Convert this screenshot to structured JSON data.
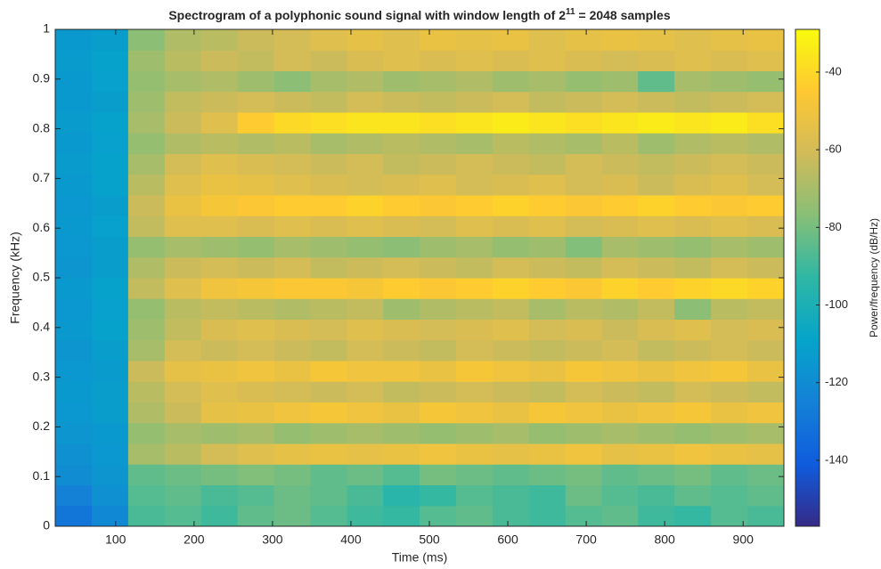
{
  "chart_data": {
    "type": "heatmap",
    "title": [
      "Spectrogram of a polyphonic sound signal with window length of 2",
      "11",
      " = 2048 samples"
    ],
    "xlabel": "Time (ms)",
    "ylabel": "Frequency (kHz)",
    "colorbar_label": "Power/frequency (dB/Hz)",
    "colormap": "parula",
    "x": [
      46,
      93,
      139,
      186,
      232,
      279,
      325,
      372,
      418,
      464,
      511,
      557,
      604,
      650,
      697,
      743,
      789,
      836,
      882,
      929
    ],
    "y": [
      0.0208,
      0.0625,
      0.1042,
      0.1458,
      0.1875,
      0.2292,
      0.2708,
      0.3125,
      0.3542,
      0.3958,
      0.4375,
      0.4792,
      0.5208,
      0.5625,
      0.6042,
      0.6458,
      0.6875,
      0.7292,
      0.7708,
      0.8125,
      0.8542,
      0.8958,
      0.9375,
      0.9792
    ],
    "z": [
      [
        -130,
        -122,
        -88,
        -86,
        -90,
        -84,
        -82,
        -86,
        -90,
        -92,
        -86,
        -84,
        -88,
        -90,
        -86,
        -84,
        -90,
        -92,
        -86,
        -88
      ],
      [
        -125,
        -118,
        -86,
        -84,
        -88,
        -86,
        -82,
        -84,
        -88,
        -95,
        -92,
        -86,
        -88,
        -90,
        -82,
        -86,
        -88,
        -84,
        -86,
        -84
      ],
      [
        -120,
        -116,
        -84,
        -82,
        -80,
        -78,
        -80,
        -84,
        -82,
        -86,
        -80,
        -82,
        -84,
        -82,
        -80,
        -84,
        -82,
        -80,
        -84,
        -82
      ],
      [
        -118,
        -115,
        -70,
        -66,
        -60,
        -56,
        -54,
        -52,
        -54,
        -52,
        -50,
        -52,
        -54,
        -52,
        -50,
        -54,
        -52,
        -50,
        -52,
        -54
      ],
      [
        -116,
        -114,
        -74,
        -70,
        -72,
        -70,
        -74,
        -72,
        -70,
        -72,
        -74,
        -72,
        -70,
        -74,
        -72,
        -70,
        -72,
        -74,
        -72,
        -70
      ],
      [
        -115,
        -112,
        -68,
        -62,
        -54,
        -52,
        -50,
        -48,
        -50,
        -52,
        -48,
        -50,
        -52,
        -48,
        -50,
        -52,
        -50,
        -48,
        -52,
        -50
      ],
      [
        -114,
        -112,
        -66,
        -60,
        -56,
        -58,
        -60,
        -62,
        -60,
        -64,
        -62,
        -60,
        -62,
        -64,
        -60,
        -62,
        -64,
        -60,
        -62,
        -64
      ],
      [
        -115,
        -113,
        -62,
        -54,
        -52,
        -50,
        -52,
        -48,
        -50,
        -50,
        -52,
        -48,
        -50,
        -52,
        -48,
        -50,
        -52,
        -50,
        -48,
        -52
      ],
      [
        -116,
        -112,
        -70,
        -60,
        -62,
        -60,
        -62,
        -64,
        -60,
        -62,
        -64,
        -60,
        -62,
        -64,
        -62,
        -60,
        -64,
        -62,
        -60,
        -62
      ],
      [
        -114,
        -110,
        -72,
        -64,
        -58,
        -56,
        -58,
        -60,
        -56,
        -58,
        -60,
        -58,
        -56,
        -60,
        -58,
        -62,
        -58,
        -56,
        -60,
        -58
      ],
      [
        -115,
        -111,
        -74,
        -66,
        -64,
        -66,
        -68,
        -66,
        -64,
        -72,
        -68,
        -66,
        -64,
        -70,
        -66,
        -68,
        -64,
        -76,
        -66,
        -64
      ],
      [
        -114,
        -110,
        -64,
        -56,
        -50,
        -48,
        -46,
        -46,
        -48,
        -44,
        -46,
        -44,
        -42,
        -44,
        -46,
        -42,
        -44,
        -42,
        -40,
        -42
      ],
      [
        -116,
        -112,
        -68,
        -62,
        -60,
        -62,
        -60,
        -64,
        -62,
        -60,
        -62,
        -64,
        -60,
        -62,
        -64,
        -60,
        -62,
        -64,
        -60,
        -62
      ],
      [
        -115,
        -112,
        -74,
        -70,
        -72,
        -74,
        -70,
        -72,
        -74,
        -76,
        -72,
        -70,
        -74,
        -72,
        -78,
        -70,
        -72,
        -74,
        -70,
        -72
      ],
      [
        -114,
        -111,
        -64,
        -56,
        -56,
        -58,
        -56,
        -58,
        -56,
        -58,
        -60,
        -56,
        -58,
        -56,
        -60,
        -58,
        -56,
        -58,
        -56,
        -58
      ],
      [
        -115,
        -112,
        -62,
        -52,
        -48,
        -46,
        -44,
        -44,
        -42,
        -44,
        -46,
        -44,
        -42,
        -44,
        -46,
        -44,
        -42,
        -44,
        -46,
        -44
      ],
      [
        -114,
        -110,
        -66,
        -56,
        -52,
        -54,
        -56,
        -58,
        -60,
        -58,
        -56,
        -60,
        -58,
        -56,
        -60,
        -58,
        -62,
        -58,
        -56,
        -60
      ],
      [
        -113,
        -110,
        -70,
        -60,
        -56,
        -58,
        -60,
        -62,
        -60,
        -64,
        -62,
        -60,
        -62,
        -64,
        -60,
        -62,
        -64,
        -62,
        -60,
        -62
      ],
      [
        -114,
        -111,
        -74,
        -68,
        -66,
        -68,
        -66,
        -70,
        -68,
        -66,
        -68,
        -70,
        -66,
        -68,
        -70,
        -66,
        -72,
        -68,
        -66,
        -68
      ],
      [
        -113,
        -110,
        -70,
        -62,
        -56,
        -44,
        -40,
        -38,
        -36,
        -36,
        -38,
        -36,
        -34,
        -36,
        -38,
        -36,
        -34,
        -36,
        -34,
        -38
      ],
      [
        -114,
        -112,
        -72,
        -64,
        -62,
        -60,
        -62,
        -64,
        -60,
        -62,
        -64,
        -62,
        -60,
        -64,
        -62,
        -60,
        -62,
        -64,
        -62,
        -60
      ],
      [
        -114,
        -111,
        -74,
        -70,
        -68,
        -72,
        -76,
        -70,
        -68,
        -72,
        -70,
        -68,
        -72,
        -70,
        -74,
        -72,
        -84,
        -70,
        -72,
        -74
      ],
      [
        -113,
        -110,
        -72,
        -66,
        -62,
        -64,
        -60,
        -62,
        -58,
        -56,
        -58,
        -56,
        -58,
        -56,
        -58,
        -60,
        -58,
        -56,
        -58,
        -56
      ],
      [
        -114,
        -112,
        -76,
        -68,
        -66,
        -62,
        -60,
        -56,
        -54,
        -56,
        -52,
        -54,
        -52,
        -56,
        -54,
        -52,
        -54,
        -56,
        -54,
        -52
      ]
    ],
    "xlim": [
      23,
      952
    ],
    "xticks": [
      100,
      200,
      300,
      400,
      500,
      600,
      700,
      800,
      900
    ],
    "ylim": [
      0,
      1
    ],
    "yticks": [
      0,
      0.1,
      0.2,
      0.3,
      0.4,
      0.5,
      0.6,
      0.7,
      0.8,
      0.9,
      1
    ],
    "clim": [
      -157,
      -29
    ],
    "cticks": [
      -140,
      -120,
      -100,
      -80,
      -60,
      -40
    ]
  }
}
